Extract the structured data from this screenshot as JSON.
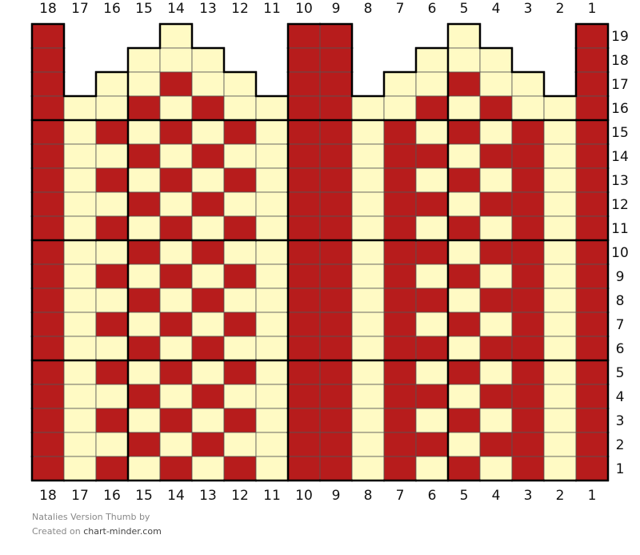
{
  "columns": [
    "18",
    "17",
    "16",
    "15",
    "14",
    "13",
    "12",
    "11",
    "10",
    "9",
    "8",
    "7",
    "6",
    "5",
    "4",
    "3",
    "2",
    "1"
  ],
  "rows": [
    "19",
    "18",
    "17",
    "16",
    "15",
    "14",
    "13",
    "12",
    "11",
    "10",
    "9",
    "8",
    "7",
    "6",
    "5",
    "4",
    "3",
    "2",
    "1"
  ],
  "palette": {
    "R": "#b71c1c",
    "C": "#fffac4"
  },
  "cells": [
    "R...C...RR...C...R",
    "R..CCC..RR..CCC..R",
    "R.CCRCC.RR.CCRCC.R",
    "RCCRCRCCRRCCRCRCCR",
    "RCRCRCRCRRCRCRCRCR",
    "RCCRCRCCRRCRRCRRCR",
    "RCRCRCRCRRCRCRCRCR",
    "RCCRCRCCRRCRRCRRCR",
    "RCRCRCRCRRCRCRCRCR",
    "RCCRCRCCRRCRRCRRCR",
    "RCRCRCRCRRCRCRCRCR",
    "RCCRCRCCRRCRRCRRCR",
    "RCRCRCRCRRCRCRCRCR",
    "RCCRCRCCRRCRRCRRCR",
    "RCRCRCRCRRCRCRCRCR",
    "RCCRCRCCRRCRRCRRCR",
    "RCRCRCRCRRCRCRCRCR",
    "RCCRCRCCRRCRRCRRCR",
    "RCRCRCRCRRCRCRCRCR"
  ],
  "footer": {
    "title": "Natalies Version Thumb",
    "by": "by",
    "created": "Created on",
    "site": "chart-minder.com"
  }
}
